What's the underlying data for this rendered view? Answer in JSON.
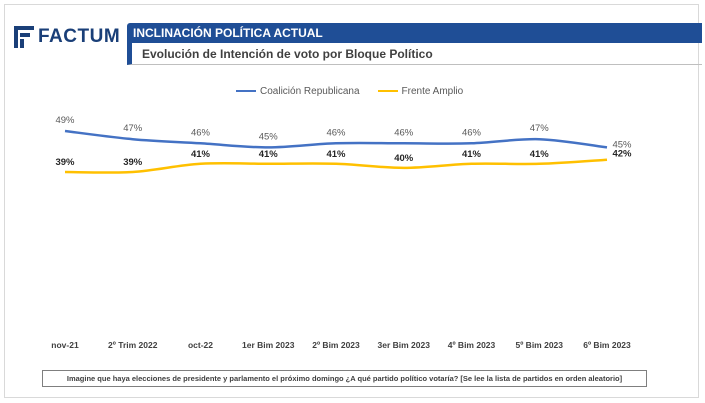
{
  "logo": {
    "text": "FACTUM"
  },
  "header": {
    "title": "INCLINACIÓN POLÍTICA ACTUAL",
    "subtitle": "Evolución de Intención de voto por Bloque Político"
  },
  "footnote": "Imagine que haya elecciones de presidente y parlamento el próximo domingo ¿A qué partido político votaría? [Se lee la lista de partidos en orden aleatorio]",
  "chart_data": {
    "type": "line",
    "title": "",
    "xlabel": "",
    "ylabel": "",
    "categories": [
      "nov-21",
      "2º Trim 2022",
      "oct-22",
      "1er Bim 2023",
      "2º Bim 2023",
      "3er Bim 2023",
      "4º Bim 2023",
      "5º Bim 2023",
      "6º Bim 2023"
    ],
    "ylim": [
      35,
      55
    ],
    "grid": false,
    "legend_position": "top",
    "series": [
      {
        "name": "Coalición Republicana",
        "color": "#4472c4",
        "values": [
          49,
          47,
          46,
          45,
          46,
          46,
          46,
          47,
          45
        ],
        "labels": [
          "49%",
          "47%",
          "46%",
          "45%",
          "46%",
          "46%",
          "46%",
          "47%",
          "45%"
        ]
      },
      {
        "name": "Frente Amplio",
        "color": "#ffc000",
        "values": [
          39,
          39,
          41,
          41,
          41,
          40,
          41,
          41,
          42
        ],
        "labels": [
          "39%",
          "39%",
          "41%",
          "41%",
          "41%",
          "40%",
          "41%",
          "41%",
          "42%"
        ]
      }
    ]
  }
}
